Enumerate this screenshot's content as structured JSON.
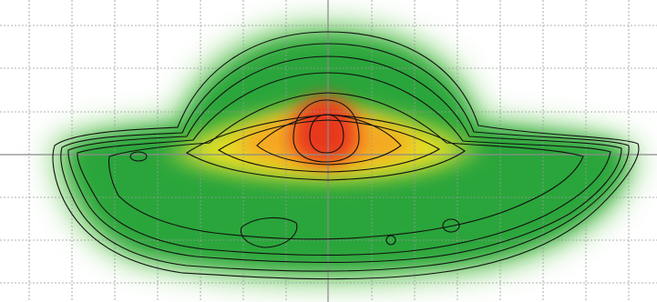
{
  "chart_data": {
    "type": "heatmap",
    "title": "",
    "xlabel": "",
    "ylabel": "",
    "grid": true,
    "legend": "none",
    "colormap": [
      "#2aa53a",
      "#8cc63f",
      "#e8e020",
      "#f5a623",
      "#e8371e"
    ],
    "contour_levels": [
      0.1,
      0.16,
      0.23,
      0.3,
      0.38,
      0.46,
      0.56,
      0.68,
      0.8,
      0.9
    ],
    "peak": {
      "value": 1.0
    },
    "background": "#ffffff",
    "gridline_color": "#9a9a9a",
    "axis_color": "#8a8a8a"
  }
}
